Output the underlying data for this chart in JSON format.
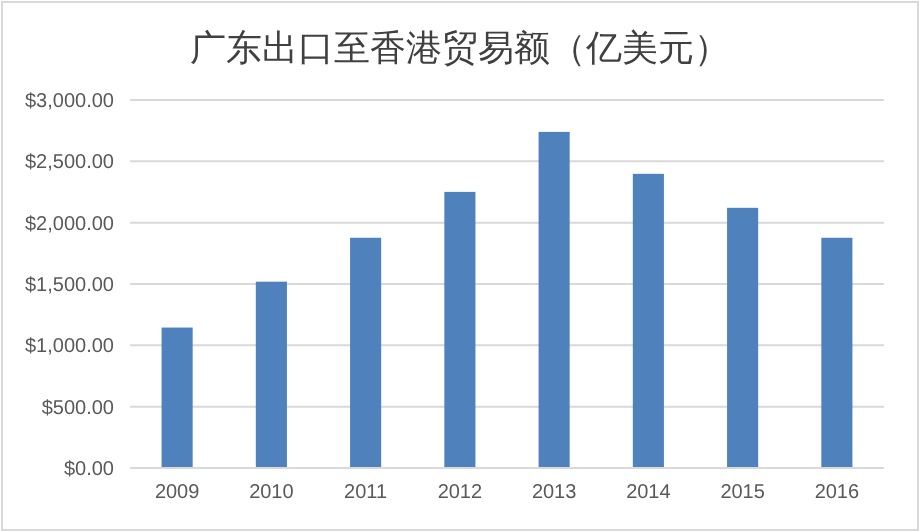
{
  "chart_data": {
    "type": "bar",
    "title": "广东出口至香港贸易额（亿美元）",
    "categories": [
      "2009",
      "2010",
      "2011",
      "2012",
      "2013",
      "2014",
      "2015",
      "2016"
    ],
    "values": [
      1145,
      1519,
      1877,
      2251,
      2740,
      2398,
      2121,
      1877
    ],
    "color": "#4f81bd",
    "ylim": [
      0,
      3000
    ],
    "yticks": [
      {
        "value": 0,
        "label": "$0.00"
      },
      {
        "value": 500,
        "label": "$500.00"
      },
      {
        "value": 1000,
        "label": "$1,000.00"
      },
      {
        "value": 1500,
        "label": "$1,500.00"
      },
      {
        "value": 2000,
        "label": "$2,000.00"
      },
      {
        "value": 2500,
        "label": "$2,500.00"
      },
      {
        "value": 3000,
        "label": "$3,000.00"
      }
    ],
    "grid": "y"
  }
}
